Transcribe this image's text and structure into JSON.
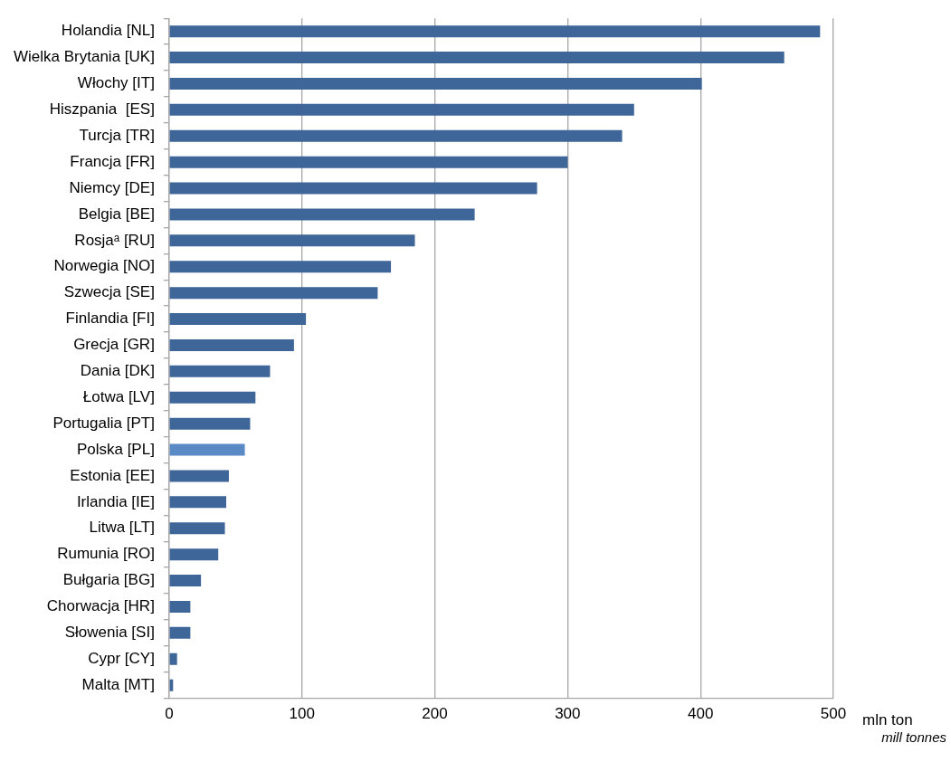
{
  "chart_data": {
    "type": "bar",
    "orientation": "horizontal",
    "xlabel": "mln ton",
    "annotations": [
      "mill tonnes"
    ],
    "categories": [
      "Holandia [NL]",
      "Wielka Brytania [UK]",
      "Włochy [IT]",
      "Hiszpania  [ES]",
      "Turcja [TR]",
      "Francja [FR]",
      "Niemcy [DE]",
      "Belgia [BE]",
      "Rosjaᵃ [RU]",
      "Norwegia [NO]",
      "Szwecja [SE]",
      "Finlandia [FI]",
      "Grecja [GR]",
      "Dania [DK]",
      "Łotwa [LV]",
      "Portugalia [PT]",
      "Polska [PL]",
      "Estonia [EE]",
      "Irlandia [IE]",
      "Litwa [LT]",
      "Rumunia [RO]",
      "Bułgaria [BG]",
      "Chorwacja [HR]",
      "Słowenia [SI]",
      "Cypr [CY]",
      "Malta [MT]"
    ],
    "values": [
      490,
      463,
      401,
      350,
      341,
      300,
      277,
      230,
      185,
      167,
      157,
      103,
      94,
      76,
      65,
      61,
      57,
      45,
      43,
      42,
      37,
      24,
      16,
      16,
      6,
      3
    ],
    "colors": [
      "#3e6699",
      "#3e6699",
      "#3e6699",
      "#3e6699",
      "#3e6699",
      "#3e6699",
      "#3e6699",
      "#3e6699",
      "#3e6699",
      "#3e6699",
      "#3e6699",
      "#3e6699",
      "#3e6699",
      "#3e6699",
      "#3e6699",
      "#3e6699",
      "#5a8ac6",
      "#3e6699",
      "#3e6699",
      "#3e6699",
      "#3e6699",
      "#3e6699",
      "#3e6699",
      "#3e6699",
      "#3e6699",
      "#3e6699"
    ],
    "xlim": [
      0,
      500
    ],
    "xticks": [
      0,
      100,
      200,
      300,
      400,
      500
    ],
    "grid": "x",
    "legend": false
  }
}
